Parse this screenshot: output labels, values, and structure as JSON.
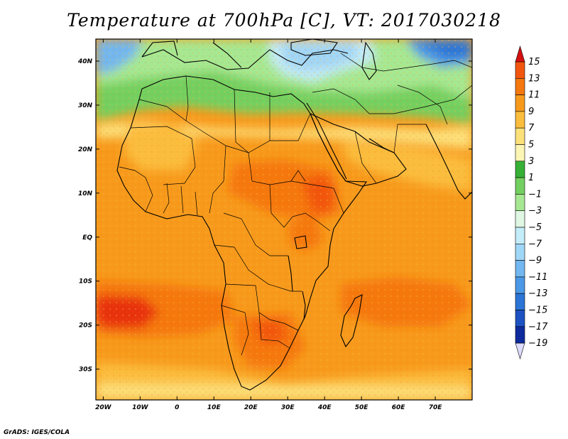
{
  "title": "Temperature at 700hPa [C], VT: 2017030218",
  "credit": "GrADS: IGES/COLA",
  "map": {
    "lon_range": [
      -22,
      80
    ],
    "lat_range": [
      -37,
      45
    ],
    "lon_ticks": [
      {
        "value": -20,
        "label": "20W"
      },
      {
        "value": -10,
        "label": "10W"
      },
      {
        "value": 0,
        "label": "0"
      },
      {
        "value": 10,
        "label": "10E"
      },
      {
        "value": 20,
        "label": "20E"
      },
      {
        "value": 30,
        "label": "30E"
      },
      {
        "value": 40,
        "label": "40E"
      },
      {
        "value": 50,
        "label": "50E"
      },
      {
        "value": 60,
        "label": "60E"
      },
      {
        "value": 70,
        "label": "70E"
      }
    ],
    "lat_ticks": [
      {
        "value": 40,
        "label": "40N"
      },
      {
        "value": 30,
        "label": "30N"
      },
      {
        "value": 20,
        "label": "20N"
      },
      {
        "value": 10,
        "label": "10N"
      },
      {
        "value": 0,
        "label": "EQ"
      },
      {
        "value": -10,
        "label": "10S"
      },
      {
        "value": -20,
        "label": "20S"
      },
      {
        "value": -30,
        "label": "30S"
      }
    ]
  },
  "colorbar": {
    "levels": [
      15,
      13,
      11,
      9,
      7,
      5,
      3,
      1,
      -1,
      -3,
      -5,
      -7,
      -9,
      -11,
      -13,
      -15,
      -17,
      -19
    ],
    "colors": [
      "#e8300e",
      "#f2560e",
      "#f5780e",
      "#f79a1c",
      "#fbbd3e",
      "#fce07a",
      "#fdf5b4",
      "#36b136",
      "#73d060",
      "#a6e892",
      "#e0f8e3",
      "#c4ecf9",
      "#a0d6f6",
      "#72b7ef",
      "#4b98e6",
      "#2c75d6",
      "#1d52c2",
      "#0e2b9e",
      "#0d1a6e",
      "#dcdcff"
    ],
    "top_triangle_color": "#d41010",
    "bottom_triangle_color": "#dcdcff"
  }
}
